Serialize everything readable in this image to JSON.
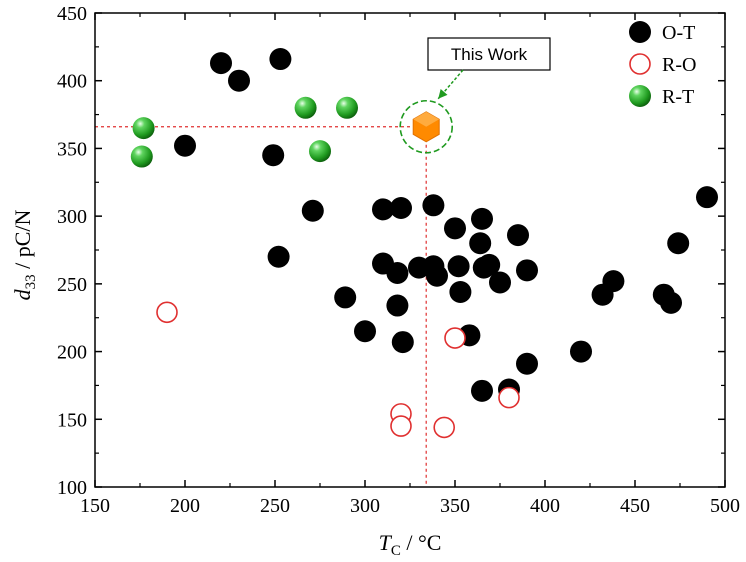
{
  "chart_data": {
    "type": "scatter",
    "xlabel_symbol": "T",
    "xlabel_sub": "C",
    "xlabel_unit": " / °C",
    "ylabel_symbol": "d",
    "ylabel_sub": "33",
    "ylabel_unit": " / pC/N",
    "xlim": [
      150,
      500
    ],
    "ylim": [
      100,
      450
    ],
    "xticks": [
      150,
      200,
      250,
      300,
      350,
      400,
      450,
      500
    ],
    "yticks": [
      100,
      150,
      200,
      250,
      300,
      350,
      400,
      450
    ],
    "series": [
      {
        "name": "O-T",
        "marker": "filled-circle",
        "color": "#000000",
        "points": [
          [
            220,
            413
          ],
          [
            230,
            400
          ],
          [
            253,
            416
          ],
          [
            200,
            352
          ],
          [
            249,
            345
          ],
          [
            271,
            304
          ],
          [
            252,
            270
          ],
          [
            289,
            240
          ],
          [
            300,
            215
          ],
          [
            310,
            305
          ],
          [
            320,
            306
          ],
          [
            338,
            308
          ],
          [
            310,
            265
          ],
          [
            318,
            258
          ],
          [
            330,
            262
          ],
          [
            338,
            263
          ],
          [
            340,
            256
          ],
          [
            318,
            234
          ],
          [
            321,
            207
          ],
          [
            350,
            291
          ],
          [
            365,
            298
          ],
          [
            352,
            263
          ],
          [
            353,
            244
          ],
          [
            364,
            280
          ],
          [
            366,
            262
          ],
          [
            369,
            264
          ],
          [
            375,
            251
          ],
          [
            385,
            286
          ],
          [
            390,
            260
          ],
          [
            358,
            212
          ],
          [
            365,
            171
          ],
          [
            380,
            172
          ],
          [
            390,
            191
          ],
          [
            420,
            200
          ],
          [
            432,
            242
          ],
          [
            438,
            252
          ],
          [
            466,
            242
          ],
          [
            470,
            236
          ],
          [
            474,
            280
          ],
          [
            490,
            314
          ]
        ]
      },
      {
        "name": "R-O",
        "marker": "open-circle",
        "color": "#e03030",
        "points": [
          [
            190,
            229
          ],
          [
            350,
            210
          ],
          [
            320,
            154
          ],
          [
            320,
            145
          ],
          [
            344,
            144
          ],
          [
            380,
            166
          ]
        ]
      },
      {
        "name": "R-T",
        "marker": "green-sphere",
        "color": "#1f9a1f",
        "points": [
          [
            177,
            365
          ],
          [
            176,
            344
          ],
          [
            267,
            380
          ],
          [
            290,
            380
          ],
          [
            275,
            348
          ]
        ]
      },
      {
        "name": "This Work",
        "marker": "orange-hexagon",
        "color": "#ff8a00",
        "points": [
          [
            334,
            366
          ]
        ]
      }
    ],
    "annotation": {
      "text": "This Work",
      "x": 334,
      "y": 366
    },
    "guide_color": "#e03030",
    "legend_position": "top-right"
  }
}
